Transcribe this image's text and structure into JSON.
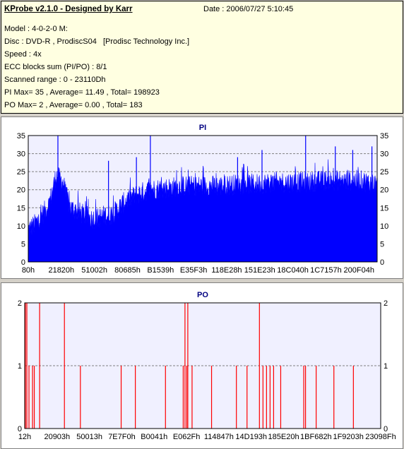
{
  "info": {
    "title": "KProbe v2.1.0 - Designed by Karr",
    "date": "Date : 2006/07/27 5:10:45",
    "lines": [
      "Model : 4-0-2-0 M:",
      "Disc : DVD-R , ProdiscS04   [Prodisc Technology Inc.]",
      "Speed : 4x",
      "ECC blocks sum (PI/PO) : 8/1",
      "Scanned range : 0 - 23110Dh",
      "PI Max= 35 , Average= 11.49 , Total= 198923",
      "PO Max= 2 , Average= 0.00 , Total= 183"
    ]
  },
  "colors": {
    "pi_fill": "#0000ff",
    "po_line": "#ff0000",
    "plot_bg": "#f0f0ff",
    "title": "#000080"
  },
  "chart_data": [
    {
      "type": "area",
      "title": "PI",
      "ylim": [
        0,
        35
      ],
      "yticks": [
        0,
        5,
        10,
        15,
        20,
        25,
        30,
        35
      ],
      "xlim": [
        0,
        23110
      ],
      "xticks": [
        "80h",
        "21820h",
        "51002h",
        "80685h",
        "B1539h",
        "E35F3h",
        "118E28h",
        "151E23h",
        "18C040h",
        "1C7157h",
        "200F04h"
      ],
      "grid": true,
      "profile_x": [
        0,
        0.02,
        0.04,
        0.06,
        0.08,
        0.1,
        0.11,
        0.12,
        0.14,
        0.16,
        0.18,
        0.2,
        0.22,
        0.24,
        0.26,
        0.28,
        0.3,
        0.32,
        0.35,
        0.4,
        0.45,
        0.5,
        0.55,
        0.6,
        0.65,
        0.7,
        0.75,
        0.8,
        0.85,
        0.9,
        0.95,
        1.0
      ],
      "profile_avg": [
        9,
        10.5,
        13,
        16,
        24,
        22,
        18,
        15,
        14,
        13,
        12,
        12,
        13,
        13,
        15,
        17,
        18,
        19,
        20,
        20.5,
        21,
        21,
        21,
        21.5,
        21.5,
        22,
        22,
        22,
        22.5,
        22.5,
        22.5,
        21.5
      ],
      "max": 35,
      "spikes": [
        [
          0.085,
          35
        ],
        [
          0.35,
          35
        ],
        [
          0.795,
          35
        ],
        [
          0.23,
          28
        ],
        [
          0.31,
          29
        ],
        [
          0.6,
          29
        ],
        [
          0.67,
          31
        ],
        [
          0.88,
          32
        ],
        [
          0.93,
          31
        ],
        [
          0.985,
          32
        ]
      ]
    },
    {
      "type": "bar",
      "title": "PO",
      "ylim": [
        0,
        2
      ],
      "yticks": [
        0,
        1,
        2
      ],
      "xlim": [
        0,
        23098
      ],
      "xticks": [
        "12h",
        "20903h",
        "50013h",
        "7E7F0h",
        "B0041h",
        "E062Fh",
        "114847h",
        "14D193h",
        "185E20h",
        "1BF682h",
        "1F9203h",
        "23098Fh"
      ],
      "grid": true,
      "spikes": [
        [
          0.0,
          2
        ],
        [
          0.004,
          2
        ],
        [
          0.01,
          1
        ],
        [
          0.02,
          1
        ],
        [
          0.025,
          1
        ],
        [
          0.04,
          2
        ],
        [
          0.11,
          2
        ],
        [
          0.155,
          1
        ],
        [
          0.27,
          1
        ],
        [
          0.31,
          1
        ],
        [
          0.395,
          1
        ],
        [
          0.445,
          1
        ],
        [
          0.455,
          1
        ],
        [
          0.45,
          2
        ],
        [
          0.458,
          2
        ],
        [
          0.47,
          1
        ],
        [
          0.525,
          1
        ],
        [
          0.595,
          1
        ],
        [
          0.625,
          1
        ],
        [
          0.66,
          2
        ],
        [
          0.67,
          1
        ],
        [
          0.68,
          1
        ],
        [
          0.69,
          1
        ],
        [
          0.7,
          1
        ],
        [
          0.72,
          1
        ],
        [
          0.785,
          1
        ],
        [
          0.79,
          1
        ],
        [
          0.82,
          1
        ],
        [
          0.87,
          1
        ],
        [
          0.925,
          1
        ]
      ]
    }
  ]
}
